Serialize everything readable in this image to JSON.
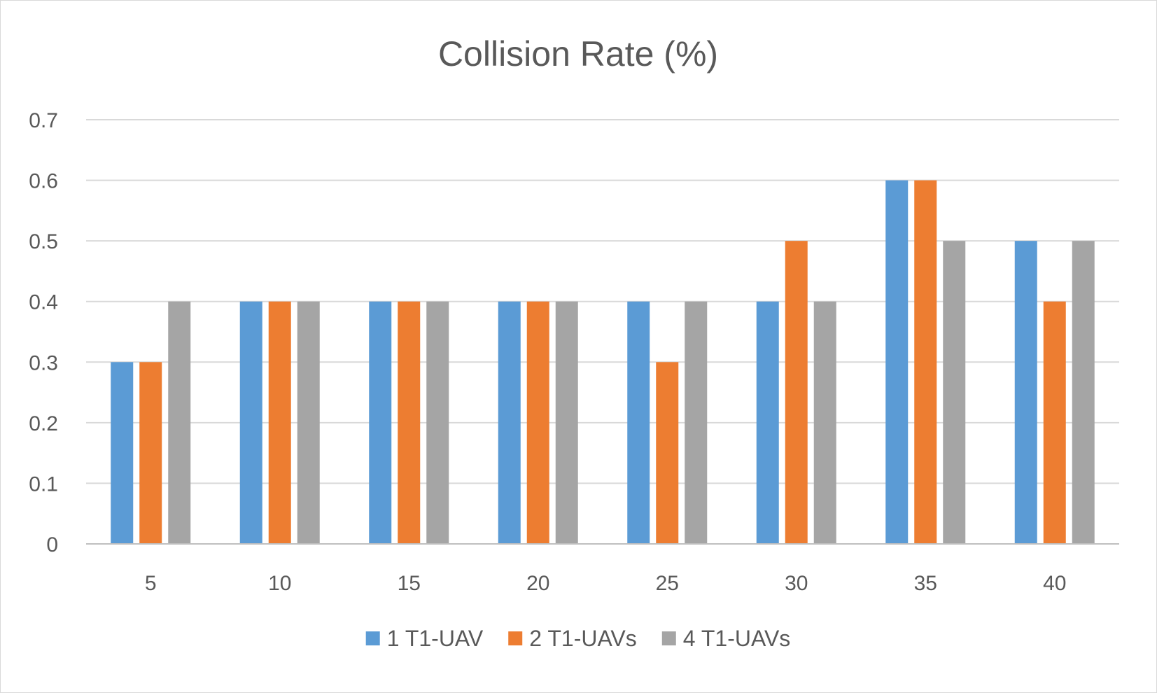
{
  "chart_data": {
    "type": "bar",
    "title": "Collision Rate (%)",
    "xlabel": "",
    "ylabel": "",
    "categories": [
      "5",
      "10",
      "15",
      "20",
      "25",
      "30",
      "35",
      "40"
    ],
    "series": [
      {
        "name": "1 T1-UAV",
        "color": "#5b9bd5",
        "values": [
          0.3,
          0.4,
          0.4,
          0.4,
          0.4,
          0.4,
          0.6,
          0.5
        ]
      },
      {
        "name": "2 T1-UAVs",
        "color": "#ed7d31",
        "values": [
          0.3,
          0.4,
          0.4,
          0.4,
          0.3,
          0.5,
          0.6,
          0.4
        ]
      },
      {
        "name": "4 T1-UAVs",
        "color": "#a5a5a5",
        "values": [
          0.4,
          0.4,
          0.4,
          0.4,
          0.4,
          0.4,
          0.5,
          0.5
        ]
      }
    ],
    "ylim": [
      0,
      0.7
    ],
    "yticks": [
      "0",
      "0.1",
      "0.2",
      "0.3",
      "0.4",
      "0.5",
      "0.6",
      "0.7"
    ],
    "grid": true,
    "legend_position": "bottom",
    "gridline_color": "#d9d9d9",
    "axis_color": "#bfbfbf"
  }
}
